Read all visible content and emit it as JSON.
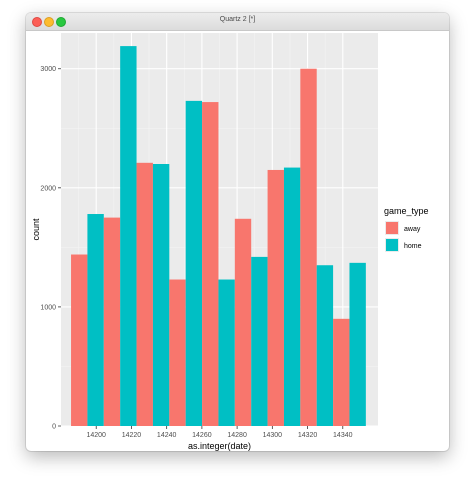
{
  "window": {
    "title": "Quartz 2 [*]"
  },
  "colors": {
    "panel": "#ebebeb",
    "grid_major": "#ffffff",
    "grid_minor": "#f4f4f4",
    "away": "#f8766d",
    "home": "#00bfc4"
  },
  "chart_data": {
    "type": "bar",
    "xlabel": "as.integer(date)",
    "ylabel": "count",
    "xlim": [
      14180,
      14360
    ],
    "ylim": [
      0,
      3300
    ],
    "x_ticks": [
      14200,
      14220,
      14240,
      14260,
      14280,
      14300,
      14320,
      14340
    ],
    "y_ticks": [
      0,
      1000,
      2000,
      3000
    ],
    "legend": {
      "title": "game_type",
      "placement": "right",
      "entries": [
        "away",
        "home"
      ]
    },
    "bin_width": 18.6,
    "bin_centers": [
      14195,
      14213.6,
      14232.2,
      14250.8,
      14269.4,
      14288,
      14306.6,
      14325.2,
      14343.8
    ],
    "series": [
      {
        "name": "away",
        "values": [
          1440,
          1750,
          2210,
          1230,
          2720,
          1740,
          2150,
          3000,
          900
        ]
      },
      {
        "name": "home",
        "values": [
          1780,
          3190,
          2200,
          2730,
          1230,
          1420,
          2170,
          1350,
          1370
        ]
      }
    ]
  }
}
